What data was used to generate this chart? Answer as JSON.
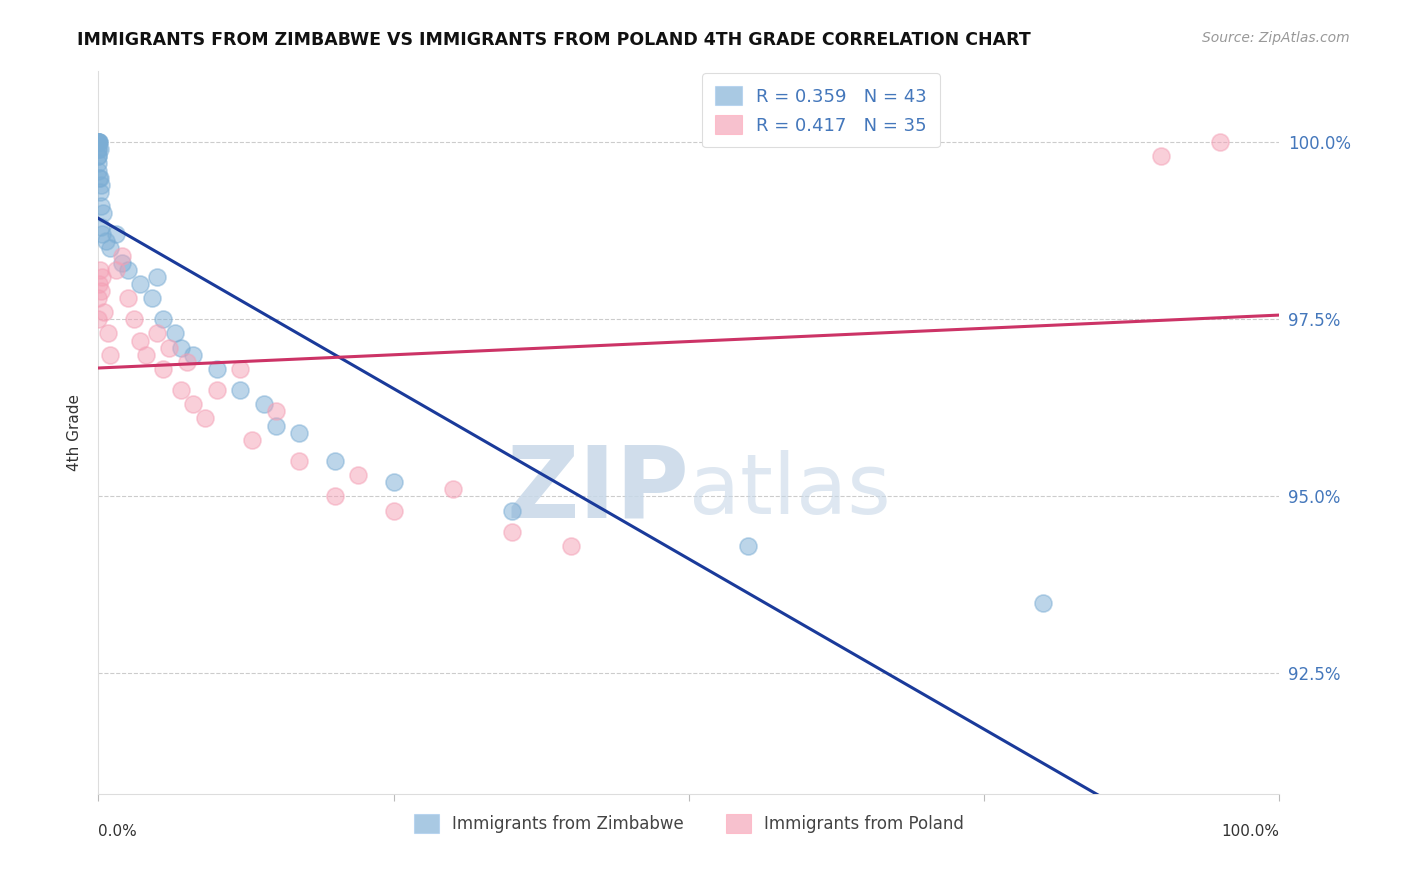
{
  "title": "IMMIGRANTS FROM ZIMBABWE VS IMMIGRANTS FROM POLAND 4TH GRADE CORRELATION CHART",
  "source": "Source: ZipAtlas.com",
  "ylabel": "4th Grade",
  "blue_label": "Immigrants from Zimbabwe",
  "pink_label": "Immigrants from Poland",
  "legend_blue_r": "R = 0.359",
  "legend_blue_n": "N = 43",
  "legend_pink_r": "R = 0.417",
  "legend_pink_n": "N = 35",
  "blue_color": "#7BADD4",
  "pink_color": "#F4A0B5",
  "blue_line_color": "#1A3A9A",
  "pink_line_color": "#CC3366",
  "ytick_labels": [
    "92.5%",
    "95.0%",
    "97.5%",
    "100.0%"
  ],
  "ytick_vals": [
    92.5,
    95.0,
    97.5,
    100.0
  ],
  "ylim": [
    90.8,
    101.0
  ],
  "xlim": [
    0.0,
    100.0
  ],
  "blue_x": [
    0.0,
    0.0,
    0.0,
    0.0,
    0.0,
    0.0,
    0.0,
    0.0,
    0.0,
    0.0,
    0.05,
    0.05,
    0.05,
    0.1,
    0.1,
    0.15,
    0.2,
    0.2,
    0.25,
    0.3,
    0.4,
    0.6,
    1.0,
    1.5,
    2.0,
    2.5,
    3.5,
    4.5,
    5.0,
    5.5,
    6.5,
    7.0,
    8.0,
    10.0,
    12.0,
    14.0,
    15.0,
    17.0,
    20.0,
    25.0,
    35.0,
    55.0,
    80.0
  ],
  "blue_y": [
    100.0,
    100.0,
    100.0,
    100.0,
    99.9,
    99.9,
    99.8,
    99.8,
    99.7,
    99.6,
    100.0,
    100.0,
    99.5,
    99.9,
    99.5,
    99.3,
    99.4,
    99.1,
    98.8,
    98.7,
    99.0,
    98.6,
    98.5,
    98.7,
    98.3,
    98.2,
    98.0,
    97.8,
    98.1,
    97.5,
    97.3,
    97.1,
    97.0,
    96.8,
    96.5,
    96.3,
    96.0,
    95.9,
    95.5,
    95.2,
    94.8,
    94.3,
    93.5
  ],
  "pink_x": [
    0.0,
    0.0,
    0.05,
    0.1,
    0.2,
    0.3,
    0.5,
    0.8,
    1.0,
    1.5,
    2.0,
    2.5,
    3.0,
    3.5,
    4.0,
    5.0,
    5.5,
    6.0,
    7.0,
    7.5,
    8.0,
    9.0,
    10.0,
    12.0,
    13.0,
    15.0,
    17.0,
    20.0,
    22.0,
    25.0,
    30.0,
    35.0,
    40.0,
    90.0,
    95.0
  ],
  "pink_y": [
    97.8,
    97.5,
    98.0,
    98.2,
    97.9,
    98.1,
    97.6,
    97.3,
    97.0,
    98.2,
    98.4,
    97.8,
    97.5,
    97.2,
    97.0,
    97.3,
    96.8,
    97.1,
    96.5,
    96.9,
    96.3,
    96.1,
    96.5,
    96.8,
    95.8,
    96.2,
    95.5,
    95.0,
    95.3,
    94.8,
    95.1,
    94.5,
    94.3,
    99.8,
    100.0
  ]
}
